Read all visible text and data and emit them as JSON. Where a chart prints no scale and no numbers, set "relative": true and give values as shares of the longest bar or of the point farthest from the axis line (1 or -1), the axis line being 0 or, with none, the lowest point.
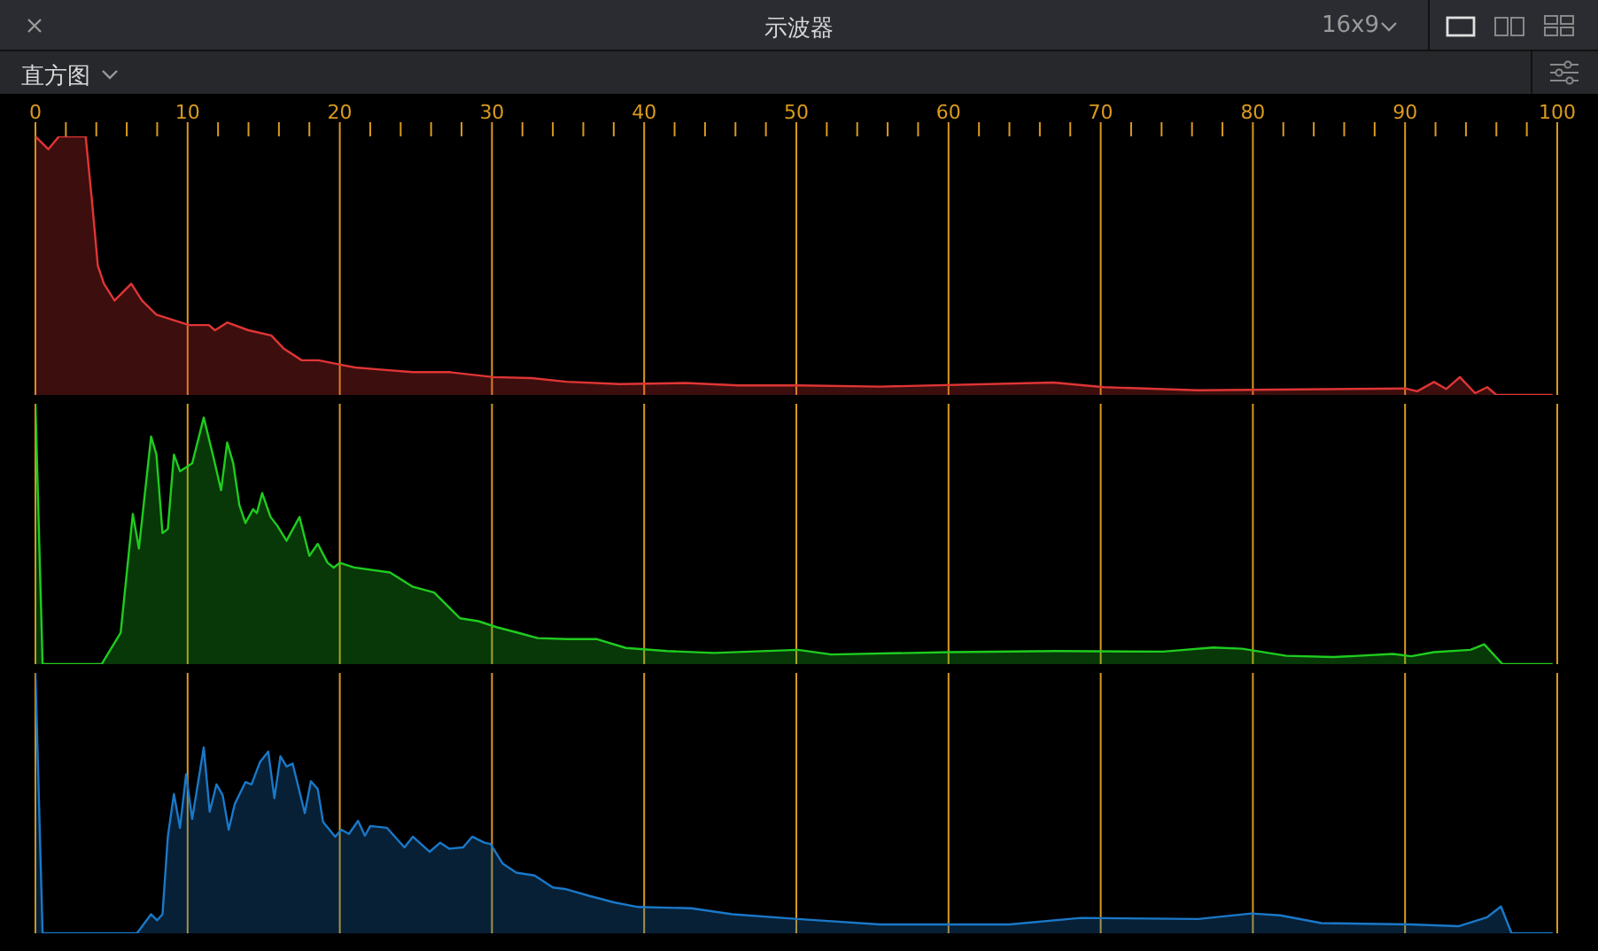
{
  "chart_data": [
    {
      "type": "area",
      "title": "示波器",
      "annotations": [
        "16x9",
        "直方图"
      ],
      "relative": true,
      "grid": "x",
      "tick_labels": "x",
      "xlim": [
        0,
        100
      ],
      "xticks": [
        0,
        {
          "value": 2,
          "label": null
        },
        {
          "value": 4,
          "label": null
        },
        {
          "value": 6,
          "label": null
        },
        {
          "value": 8,
          "label": null
        },
        10,
        {
          "value": 12,
          "label": null
        },
        {
          "value": 14,
          "label": null
        },
        {
          "value": 16,
          "label": null
        },
        {
          "value": 18,
          "label": null
        },
        20,
        {
          "value": 22,
          "label": null
        },
        {
          "value": 24,
          "label": null
        },
        {
          "value": 26,
          "label": null
        },
        {
          "value": 28,
          "label": null
        },
        30,
        {
          "value": 32,
          "label": null
        },
        {
          "value": 34,
          "label": null
        },
        {
          "value": 36,
          "label": null
        },
        {
          "value": 38,
          "label": null
        },
        40,
        {
          "value": 42,
          "label": null
        },
        {
          "value": 44,
          "label": null
        },
        {
          "value": 46,
          "label": null
        },
        {
          "value": 48,
          "label": null
        },
        50,
        {
          "value": 52,
          "label": null
        },
        {
          "value": 54,
          "label": null
        },
        {
          "value": 56,
          "label": null
        },
        {
          "value": 58,
          "label": null
        },
        60,
        {
          "value": 62,
          "label": null
        },
        {
          "value": 64,
          "label": null
        },
        {
          "value": 66,
          "label": null
        },
        {
          "value": 68,
          "label": null
        },
        70,
        {
          "value": 72,
          "label": null
        },
        {
          "value": 74,
          "label": null
        },
        {
          "value": 76,
          "label": null
        },
        {
          "value": 78,
          "label": null
        },
        80,
        {
          "value": 82,
          "label": null
        },
        {
          "value": 84,
          "label": null
        },
        {
          "value": 86,
          "label": null
        },
        {
          "value": 88,
          "label": null
        },
        90,
        {
          "value": 92,
          "label": null
        },
        {
          "value": 94,
          "label": null
        },
        {
          "value": 96,
          "label": null
        },
        {
          "value": 98,
          "label": null
        },
        100
      ],
      "x": [
        0,
        0.85,
        1.55,
        3.3,
        3.7,
        4.1,
        4.5,
        5.2,
        6.3,
        7.0,
        7.95,
        10.1,
        11.4,
        11.8,
        12.6,
        14.0,
        14.4,
        15.5,
        16.3,
        17.5,
        18.6,
        20.2,
        21.0,
        22.5,
        24.8,
        27.2,
        30.1,
        32.6,
        34.9,
        38.4,
        42.7,
        46.2,
        50.1,
        55.5,
        66.9,
        70.2,
        76.4,
        90.0,
        90.8,
        91.9,
        92.7,
        93.6,
        94.6,
        95.4,
        96.0,
        99.7
      ],
      "series": [
        {
          "color": "#e03535",
          "values": [
            1,
            0.95,
            1,
            1,
            0.76,
            0.5,
            0.43,
            0.365,
            0.43,
            0.365,
            0.31,
            0.27,
            0.27,
            0.25,
            0.28,
            0.25,
            0.245,
            0.23,
            0.18,
            0.134,
            0.134,
            0.115,
            0.106,
            0.099,
            0.088,
            0.088,
            0.069,
            0.065,
            0.051,
            0.042,
            0.046,
            0.037,
            0.037,
            0.032,
            0.048,
            0.03,
            0.018,
            0.025,
            0.014,
            0.05,
            0.023,
            0.069,
            0.007,
            0.03,
            0,
            0
          ]
        }
      ]
    },
    {
      "type": "area",
      "relative": true,
      "grid": "x",
      "tick_labels": false,
      "xlim": [
        0,
        100
      ],
      "xticks": [
        0,
        10,
        20,
        30,
        40,
        50,
        60,
        70,
        80,
        90,
        100
      ],
      "x": [
        0,
        0.47,
        4.35,
        5.6,
        6.4,
        6.8,
        7.6,
        7.95,
        8.35,
        8.7,
        9.1,
        9.5,
        10.3,
        11.06,
        11.7,
        12.2,
        12.6,
        13.0,
        13.4,
        13.8,
        14.3,
        14.55,
        14.9,
        15.45,
        15.9,
        16.5,
        17.35,
        18.0,
        18.55,
        19.2,
        19.6,
        20.0,
        20.95,
        23.3,
        24.8,
        26.2,
        27.9,
        29.1,
        30.3,
        31.8,
        33.0,
        34.9,
        36.9,
        38.8,
        41.5,
        44.6,
        50.1,
        52.3,
        60.1,
        67.1,
        74.1,
        77.4,
        79.3,
        82.2,
        85.3,
        89.2,
        90.4,
        91.9,
        94.3,
        95.2,
        96.4,
        99.7
      ],
      "series": [
        {
          "color": "#1fcc1f",
          "values": [
            1,
            0,
            0,
            0.12,
            0.577,
            0.444,
            0.874,
            0.805,
            0.503,
            0.519,
            0.805,
            0.741,
            0.771,
            0.947,
            0.794,
            0.668,
            0.851,
            0.771,
            0.611,
            0.542,
            0.595,
            0.58,
            0.657,
            0.565,
            0.531,
            0.474,
            0.565,
            0.416,
            0.462,
            0.389,
            0.371,
            0.389,
            0.371,
            0.352,
            0.297,
            0.275,
            0.176,
            0.165,
            0.142,
            0.119,
            0.1,
            0.096,
            0.096,
            0.062,
            0.05,
            0.043,
            0.055,
            0.037,
            0.046,
            0.05,
            0.048,
            0.064,
            0.059,
            0.032,
            0.027,
            0.039,
            0.03,
            0.046,
            0.055,
            0.076,
            0,
            0
          ]
        }
      ]
    },
    {
      "type": "area",
      "relative": true,
      "grid": "x",
      "tick_labels": false,
      "xlim": [
        0,
        100
      ],
      "xticks": [
        0,
        10,
        20,
        30,
        40,
        50,
        60,
        70,
        80,
        90,
        100
      ],
      "x": [
        0,
        0.47,
        6.67,
        7.6,
        8.0,
        8.35,
        8.7,
        9.1,
        9.5,
        9.9,
        10.3,
        11.06,
        11.45,
        11.9,
        12.3,
        12.7,
        13.1,
        13.8,
        14.2,
        14.75,
        15.3,
        15.7,
        16.1,
        16.5,
        16.9,
        17.7,
        18.1,
        18.55,
        18.9,
        19.7,
        20.1,
        20.6,
        21.2,
        21.65,
        22.0,
        23.1,
        24.25,
        24.8,
        25.9,
        26.6,
        27.2,
        28.1,
        28.7,
        29.5,
        29.9,
        30.7,
        31.6,
        32.8,
        34.0,
        34.9,
        36.5,
        38.0,
        39.6,
        43.1,
        45.8,
        50.1,
        55.5,
        64.0,
        68.7,
        76.4,
        79.9,
        81.8,
        84.5,
        90.4,
        93.5,
        95.4,
        96.3,
        97.0,
        99.7
      ],
      "series": [
        {
          "color": "#1a78c8",
          "values": [
            1,
            0,
            0,
            0.073,
            0.05,
            0.073,
            0.371,
            0.535,
            0.405,
            0.611,
            0.439,
            0.714,
            0.467,
            0.572,
            0.531,
            0.398,
            0.497,
            0.581,
            0.572,
            0.657,
            0.698,
            0.519,
            0.68,
            0.641,
            0.652,
            0.462,
            0.584,
            0.554,
            0.428,
            0.371,
            0.398,
            0.382,
            0.432,
            0.375,
            0.412,
            0.405,
            0.33,
            0.371,
            0.313,
            0.348,
            0.325,
            0.33,
            0.371,
            0.348,
            0.343,
            0.268,
            0.233,
            0.222,
            0.176,
            0.169,
            0.142,
            0.119,
            0.101,
            0.096,
            0.073,
            0.055,
            0.034,
            0.034,
            0.059,
            0.055,
            0.076,
            0.069,
            0.039,
            0.034,
            0.027,
            0.062,
            0.103,
            0,
            0
          ]
        }
      ]
    }
  ]
}
